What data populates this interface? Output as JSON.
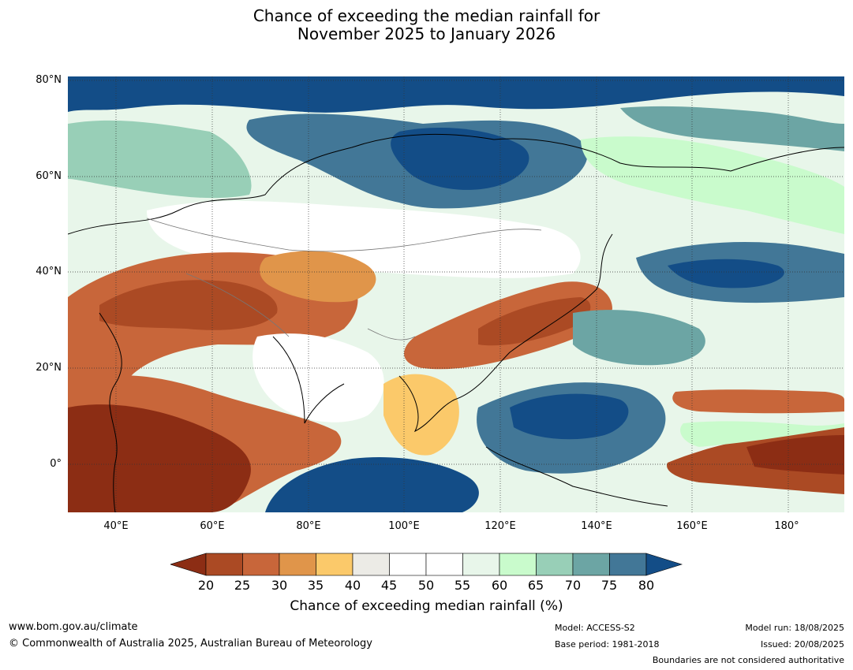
{
  "title": {
    "line1": "Chance of exceeding the median rainfall for",
    "line2": "November 2025 to January 2026"
  },
  "map": {
    "lat_labels": [
      "80°N",
      "60°N",
      "40°N",
      "20°N",
      "0°"
    ],
    "lon_labels": [
      "40°E",
      "60°E",
      "80°E",
      "100°E",
      "120°E",
      "140°E",
      "160°E",
      "180°"
    ]
  },
  "colorbar": {
    "ticks": [
      "20",
      "25",
      "30",
      "35",
      "40",
      "45",
      "50",
      "55",
      "60",
      "65",
      "70",
      "75",
      "80"
    ],
    "label": "Chance of exceeding median rainfall (%)",
    "colors": [
      "#8c2d14",
      "#ab4a24",
      "#c8663a",
      "#e0954a",
      "#fbc96a",
      "#ecebe6",
      "#ffffff",
      "#ffffff",
      "#e8f6ea",
      "#c9fbcc",
      "#98cfb7",
      "#6ca5a4",
      "#427797",
      "#134d87"
    ]
  },
  "footer": {
    "url": "www.bom.gov.au/climate",
    "copyright": "© Commonwealth of Australia 2025, Australian Bureau of Meteorology",
    "model": "Model: ACCESS-S2",
    "base_period": "Base period: 1981-2018",
    "model_run": "Model run: 18/08/2025",
    "issued": "Issued: 20/08/2025",
    "disclaimer": "Boundaries are not considered authoritative"
  }
}
